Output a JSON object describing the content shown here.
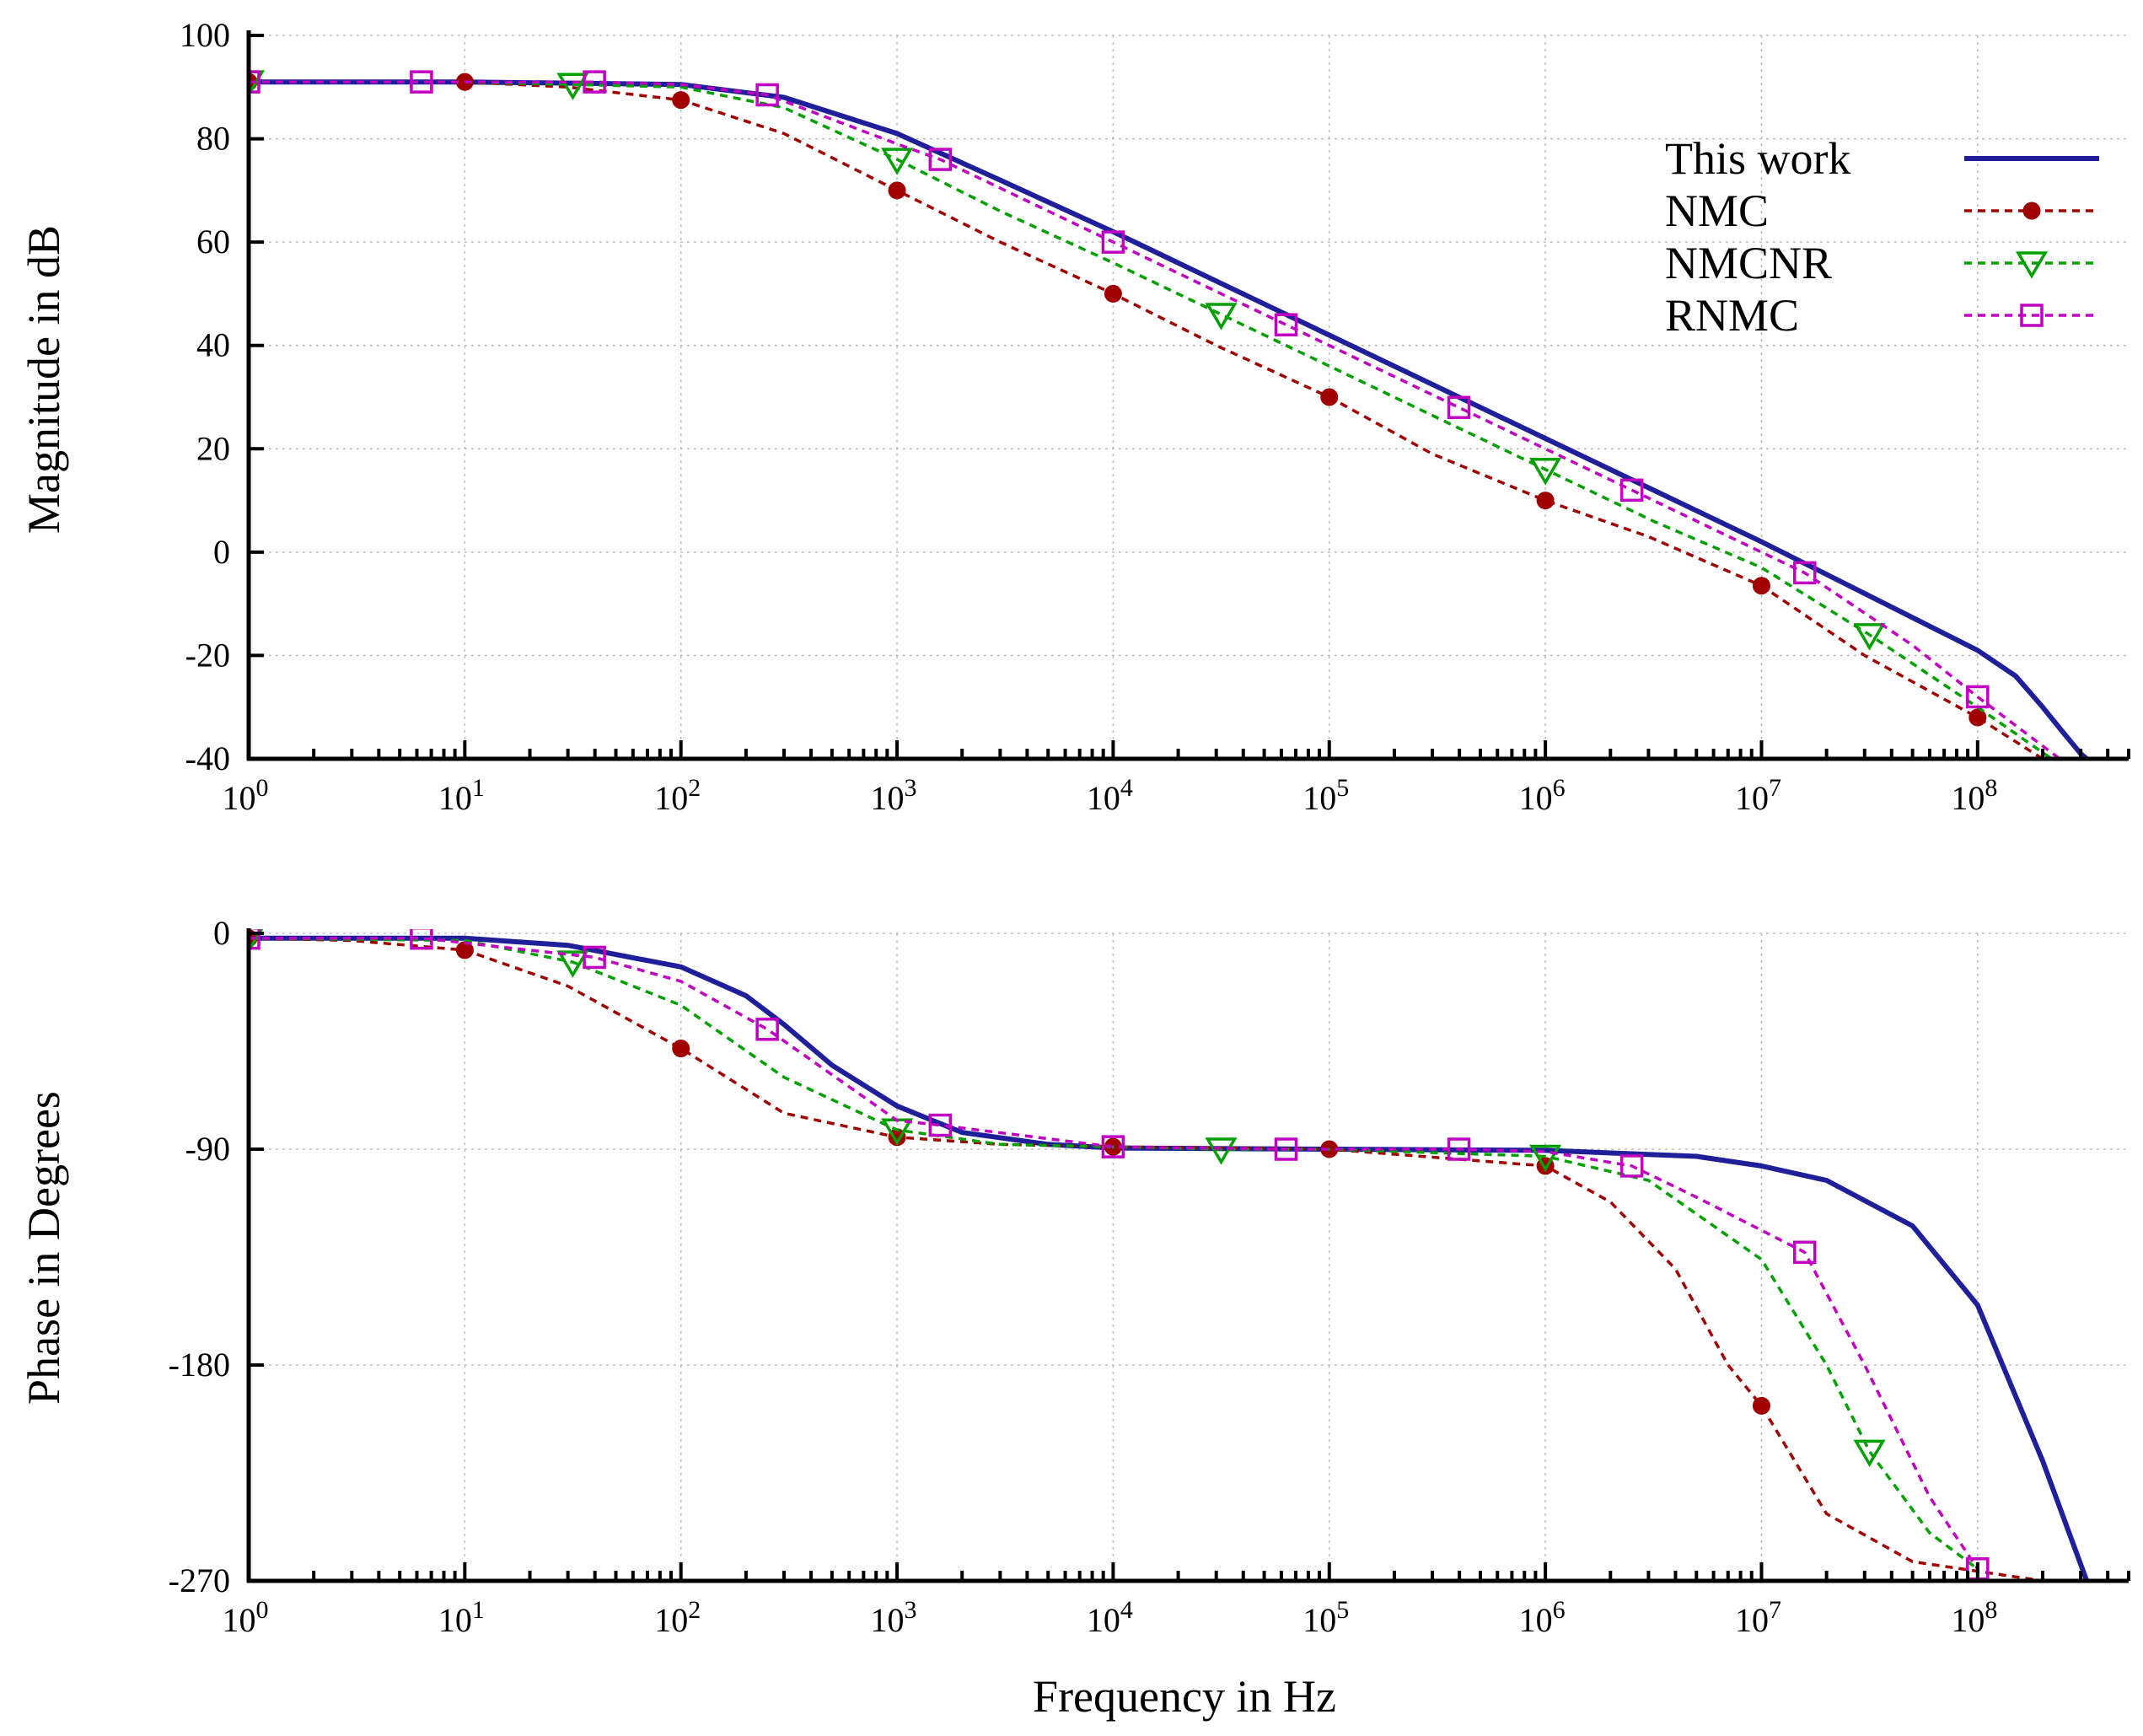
{
  "chart_data": [
    {
      "type": "line",
      "title": "",
      "xlabel": "",
      "ylabel": "Magnitude in dB",
      "xscale": "log10",
      "xlim": [
        1,
        500000000
      ],
      "ylim": [
        -40,
        100
      ],
      "yticks": [
        -40,
        -20,
        0,
        20,
        40,
        60,
        80,
        100
      ],
      "ytick_labels": [
        "-40",
        "-20",
        "0",
        "20",
        "40",
        "60",
        "80",
        "100"
      ],
      "xtick_exponents": [
        0,
        1,
        2,
        3,
        4,
        5,
        6,
        7,
        8
      ],
      "xtick_base": "10",
      "grid": true,
      "legend_position": "top-right",
      "series": [
        {
          "name": "This work",
          "color": "#1f1f99",
          "style": "solid",
          "marker": "none",
          "x": [
            1,
            10,
            100,
            300,
            1000,
            3000,
            10000,
            100000,
            1000000,
            10000000,
            30000000,
            100000000,
            150000000,
            200000000,
            250000000,
            300000000,
            320000000
          ],
          "y": [
            91,
            91,
            90.5,
            88,
            81,
            72,
            62,
            42,
            22,
            2,
            -8,
            -19,
            -24,
            -30,
            -35,
            -39,
            -40
          ]
        },
        {
          "name": "NMC",
          "color": "#a00000",
          "style": "dashed",
          "marker": "filled-circle",
          "x": [
            1,
            10,
            30,
            100,
            300,
            1000,
            3000,
            10000,
            30000,
            100000,
            300000,
            1000000,
            3000000,
            10000000,
            30000000,
            100000000,
            200000000
          ],
          "y": [
            91,
            91,
            90,
            87.5,
            81,
            70,
            60,
            50,
            40,
            30,
            19,
            10,
            3,
            -6.5,
            -20,
            -32,
            -40
          ],
          "markers_x": [
            1,
            10,
            100,
            1000,
            10000,
            100000,
            1000000,
            10000000,
            100000000
          ],
          "markers_y": [
            91,
            91,
            87.5,
            70,
            50,
            30,
            10,
            -6.5,
            -32
          ]
        },
        {
          "name": "NMCNR",
          "color": "#00a000",
          "style": "dashed",
          "marker": "open-triangle-down",
          "x": [
            1,
            10,
            31.6,
            100,
            300,
            1000,
            3000,
            10000,
            31600,
            100000,
            316000,
            1000000,
            3160000,
            10000000,
            31600000,
            100000000,
            220000000
          ],
          "y": [
            91,
            91,
            90.5,
            90,
            86,
            76,
            66,
            56,
            46,
            36,
            26,
            16,
            6,
            -3,
            -16,
            -30,
            -40
          ],
          "markers_x": [
            1,
            31.6,
            1000,
            31600,
            1000000,
            31600000
          ],
          "markers_y": [
            91,
            90.5,
            76,
            46,
            16,
            -16
          ]
        },
        {
          "name": "RNMC",
          "color": "#c000c0",
          "style": "dashed",
          "marker": "open-square",
          "x": [
            1,
            6.3,
            39.8,
            100,
            251,
            1000,
            1585,
            10000,
            63100,
            398000,
            2512000,
            15850000,
            50000000,
            100000000,
            240000000
          ],
          "y": [
            91,
            91,
            91,
            90.5,
            88.5,
            79,
            76,
            60,
            44,
            28,
            12,
            -4,
            -18,
            -28,
            -40
          ],
          "markers_x": [
            1,
            6.3,
            39.8,
            251,
            1585,
            10000,
            63100,
            398000,
            2512000,
            15850000,
            100000000
          ],
          "markers_y": [
            91,
            91,
            91,
            88.5,
            76,
            60,
            44,
            28,
            12,
            -4,
            -28
          ]
        }
      ]
    },
    {
      "type": "line",
      "title": "",
      "xlabel": "Frequency in Hz",
      "ylabel": "Phase in Degrees",
      "xscale": "log10",
      "xlim": [
        1,
        500000000
      ],
      "ylim": [
        -270,
        0
      ],
      "yticks": [
        -270,
        -180,
        -90,
        0
      ],
      "ytick_labels": [
        "-270",
        "-180",
        "-90",
        "0"
      ],
      "xtick_exponents": [
        0,
        1,
        2,
        3,
        4,
        5,
        6,
        7,
        8
      ],
      "xtick_base": "10",
      "grid": true,
      "series": [
        {
          "name": "This work",
          "color": "#1f1f99",
          "style": "solid",
          "marker": "none",
          "x": [
            1,
            10,
            30,
            100,
            200,
            300,
            500,
            1000,
            2000,
            5000,
            10000,
            100000,
            1000000,
            5000000,
            10000000,
            20000000,
            50000000,
            100000000,
            200000000,
            320000000
          ],
          "y": [
            -2,
            -2,
            -5,
            -14,
            -26,
            -38,
            -55,
            -72,
            -83,
            -88,
            -89.5,
            -90,
            -90.5,
            -93,
            -97,
            -103,
            -122,
            -155,
            -220,
            -270
          ]
        },
        {
          "name": "NMC",
          "color": "#a00000",
          "style": "dashed",
          "marker": "filled-circle",
          "x": [
            1,
            3,
            10,
            30,
            100,
            300,
            1000,
            3000,
            10000,
            100000,
            1000000,
            2000000,
            4000000,
            7000000,
            10000000,
            20000000,
            50000000,
            200000000
          ],
          "y": [
            -2,
            -3,
            -7,
            -22,
            -48,
            -75,
            -85,
            -88,
            -89,
            -90,
            -97,
            -112,
            -140,
            -180,
            -197,
            -242,
            -262,
            -270
          ],
          "markers_x": [
            1,
            10,
            100,
            1000,
            10000,
            100000,
            1000000,
            10000000
          ],
          "markers_y": [
            -2,
            -7,
            -48,
            -85,
            -89,
            -90,
            -97,
            -197
          ]
        },
        {
          "name": "NMCNR",
          "color": "#00a000",
          "style": "dashed",
          "marker": "open-triangle-down",
          "x": [
            1,
            10,
            31.6,
            100,
            300,
            1000,
            3000,
            10000,
            31600,
            100000,
            1000000,
            3000000,
            10000000,
            20000000,
            31600000,
            60000000,
            100000000
          ],
          "y": [
            -2,
            -3,
            -12,
            -30,
            -60,
            -82,
            -88,
            -89,
            -90,
            -90,
            -93,
            -103,
            -136,
            -180,
            -216,
            -250,
            -265
          ],
          "markers_x": [
            1,
            31.6,
            1000,
            31600,
            1000000,
            31600000
          ],
          "markers_y": [
            -2,
            -12,
            -82,
            -90,
            -93,
            -216
          ]
        },
        {
          "name": "RNMC",
          "color": "#c000c0",
          "style": "dashed",
          "marker": "open-square",
          "x": [
            1,
            6.3,
            39.8,
            100,
            251,
            1000,
            1585,
            10000,
            63100,
            398000,
            1000000,
            2512000,
            5000000,
            15850000,
            30000000,
            60000000,
            100000000
          ],
          "y": [
            -2,
            -2,
            -10,
            -20,
            -40,
            -78,
            -80,
            -89,
            -90,
            -90,
            -91,
            -97,
            -110,
            -133,
            -180,
            -235,
            -265
          ],
          "markers_x": [
            1,
            6.3,
            39.8,
            251,
            1585,
            10000,
            63100,
            398000,
            2512000,
            15850000,
            100000000
          ],
          "markers_y": [
            -2,
            -2,
            -10,
            -40,
            -80,
            -89,
            -90,
            -90,
            -97,
            -133,
            -265
          ]
        }
      ]
    }
  ]
}
